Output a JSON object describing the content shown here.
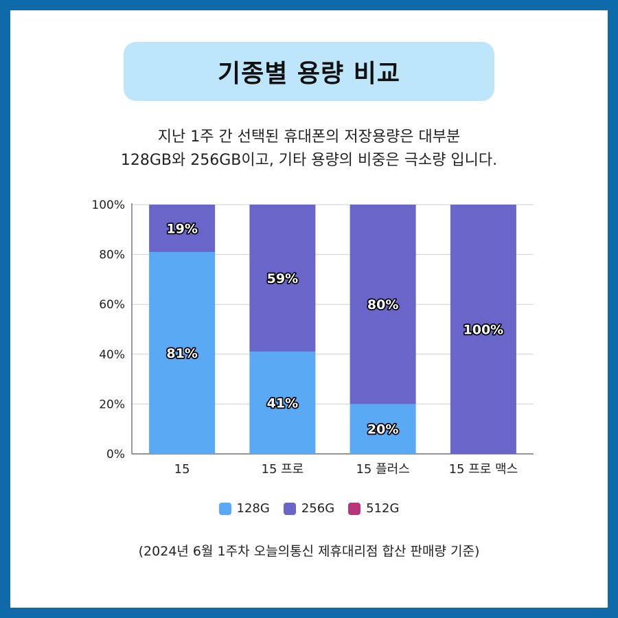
{
  "title": "기종별 용량 비교",
  "subtitle_lines": [
    "지난 1주 간 선택된 휴대폰의 저장용량은 대부분",
    "128GB와 256GB이고, 기타 용량의 비중은 극소량 입니다."
  ],
  "footnote": "(2024년 6월 1주차 오늘의통신 제휴대리점 합산 판매량 기준)",
  "chart_data": {
    "type": "bar",
    "stacked": true,
    "categories": [
      "15",
      "15 프로",
      "15 플러스",
      "15 프로 맥스"
    ],
    "series": [
      {
        "name": "128G",
        "color": "#5aa9f5",
        "values": [
          81,
          41,
          20,
          0
        ],
        "labels": [
          "81%",
          "41%",
          "20%",
          ""
        ]
      },
      {
        "name": "256G",
        "color": "#6a66c9",
        "values": [
          19,
          59,
          80,
          100
        ],
        "labels": [
          "19%",
          "59%",
          "80%",
          "100%"
        ]
      },
      {
        "name": "512G",
        "color": "#b8357c",
        "values": [
          0,
          0,
          0,
          0
        ],
        "labels": [
          "",
          "",
          "",
          ""
        ]
      }
    ],
    "yticks": [
      "0%",
      "20%",
      "40%",
      "60%",
      "80%",
      "100%"
    ],
    "ylim": [
      0,
      100
    ],
    "legend_position": "bottom",
    "grid": true
  }
}
